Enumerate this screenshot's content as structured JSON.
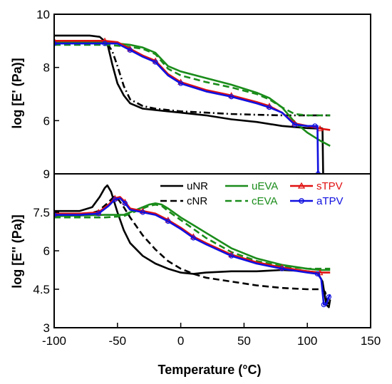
{
  "chart_data": [
    {
      "type": "line",
      "panel": "top",
      "ylabel": "log [E' (Pa)]",
      "xlim": [
        -100,
        150
      ],
      "ylim": [
        4,
        10
      ],
      "ytick_labels": [
        "10",
        "8",
        "6"
      ],
      "grid": false,
      "series": [
        {
          "name": "uNR",
          "color": "#000000",
          "dash": "solid",
          "marker": "none",
          "x": [
            -100,
            -80,
            -72,
            -64,
            -58,
            -54,
            -50,
            -45,
            -40,
            -30,
            -20,
            -10,
            0,
            20,
            40,
            60,
            80,
            100,
            108,
            111,
            112,
            112.5
          ],
          "y": [
            9.2,
            9.2,
            9.2,
            9.15,
            8.9,
            8.1,
            7.4,
            6.95,
            6.65,
            6.45,
            6.4,
            6.35,
            6.3,
            6.2,
            6.05,
            5.95,
            5.8,
            5.72,
            5.7,
            5.72,
            5.7,
            4.0
          ]
        },
        {
          "name": "cNR",
          "color": "#000000",
          "dash": "dashdot",
          "marker": "none",
          "x": [
            -100,
            -70,
            -63,
            -58,
            -54,
            -50,
            -45,
            -40,
            -30,
            -20,
            -10,
            0,
            20,
            40,
            60,
            80,
            100,
            118
          ],
          "y": [
            8.95,
            8.95,
            8.95,
            8.9,
            8.6,
            8.05,
            7.3,
            6.8,
            6.55,
            6.45,
            6.4,
            6.35,
            6.3,
            6.25,
            6.22,
            6.2,
            6.2,
            6.2
          ]
        },
        {
          "name": "uEVA",
          "color": "#1a8c1a",
          "dash": "solid",
          "marker": "none",
          "x": [
            -100,
            -60,
            -40,
            -30,
            -20,
            -10,
            0,
            20,
            40,
            60,
            70,
            80,
            90,
            100,
            110,
            118
          ],
          "y": [
            8.95,
            8.95,
            8.85,
            8.75,
            8.55,
            8.05,
            7.85,
            7.6,
            7.35,
            7.05,
            6.85,
            6.5,
            5.95,
            5.55,
            5.25,
            5.05
          ]
        },
        {
          "name": "cEVA",
          "color": "#1a8c1a",
          "dash": "dashed",
          "marker": "none",
          "x": [
            -100,
            -60,
            -45,
            -30,
            -20,
            -10,
            0,
            20,
            40,
            60,
            70,
            80,
            90,
            100,
            110,
            118
          ],
          "y": [
            8.85,
            8.85,
            8.8,
            8.7,
            8.5,
            7.95,
            7.7,
            7.45,
            7.25,
            7.0,
            6.8,
            6.5,
            6.25,
            6.2,
            6.2,
            6.2
          ]
        },
        {
          "name": "sTPV",
          "color": "#e01010",
          "dash": "solid",
          "marker": "triangle",
          "x": [
            -100,
            -80,
            -60,
            -50,
            -40,
            -30,
            -20,
            -10,
            0,
            20,
            40,
            60,
            70,
            80,
            90,
            100,
            110,
            118
          ],
          "y": [
            9.0,
            9.0,
            9.0,
            8.95,
            8.7,
            8.45,
            8.25,
            7.75,
            7.45,
            7.15,
            6.95,
            6.7,
            6.55,
            6.3,
            5.9,
            5.8,
            5.7,
            5.65
          ]
        },
        {
          "name": "aTPV",
          "color": "#1010e0",
          "dash": "solid",
          "marker": "circle",
          "x": [
            -100,
            -80,
            -60,
            -50,
            -40,
            -30,
            -20,
            -10,
            0,
            20,
            40,
            60,
            70,
            80,
            90,
            100,
            106,
            108,
            108.5
          ],
          "y": [
            8.9,
            8.9,
            8.9,
            8.9,
            8.65,
            8.4,
            8.2,
            7.7,
            7.4,
            7.1,
            6.9,
            6.65,
            6.5,
            6.3,
            5.85,
            5.8,
            5.8,
            5.8,
            4.0
          ]
        }
      ]
    },
    {
      "type": "line",
      "panel": "bottom",
      "ylabel": "log [E'' (Pa)]",
      "xlabel": "Temperature (°C)",
      "xlim": [
        -100,
        150
      ],
      "ylim": [
        3,
        9
      ],
      "ytick_labels": [
        "9",
        "7.5",
        "6",
        "4.5",
        "3"
      ],
      "xtick_labels": [
        "-100",
        "-50",
        "0",
        "50",
        "100",
        "150"
      ],
      "legend_position": "top-right",
      "grid": false,
      "series": [
        {
          "name": "uNR",
          "color": "#000000",
          "dash": "solid",
          "marker": "none",
          "x": [
            -100,
            -80,
            -70,
            -64,
            -60,
            -58,
            -55,
            -50,
            -45,
            -40,
            -30,
            -20,
            -10,
            0,
            10,
            20,
            40,
            60,
            80,
            100,
            108,
            112,
            115,
            117,
            118
          ],
          "y": [
            7.55,
            7.55,
            7.7,
            8.1,
            8.45,
            8.55,
            8.3,
            7.5,
            6.8,
            6.3,
            5.8,
            5.5,
            5.3,
            5.15,
            5.1,
            5.15,
            5.2,
            5.2,
            5.25,
            5.2,
            5.15,
            4.8,
            3.9,
            3.8,
            4.1
          ]
        },
        {
          "name": "cNR",
          "color": "#000000",
          "dash": "dashed",
          "marker": "none",
          "x": [
            -100,
            -80,
            -65,
            -58,
            -53,
            -50,
            -45,
            -40,
            -30,
            -20,
            -10,
            0,
            10,
            20,
            40,
            60,
            80,
            100,
            110,
            114,
            116,
            117
          ],
          "y": [
            7.3,
            7.35,
            7.55,
            7.85,
            8.1,
            8.05,
            7.7,
            7.3,
            6.6,
            6.05,
            5.6,
            5.3,
            5.1,
            4.95,
            4.8,
            4.65,
            4.55,
            4.5,
            4.5,
            4.4,
            4.0,
            3.9
          ]
        },
        {
          "name": "uEVA",
          "color": "#1a8c1a",
          "dash": "solid",
          "marker": "none",
          "x": [
            -100,
            -60,
            -45,
            -35,
            -25,
            -20,
            -15,
            -10,
            0,
            10,
            20,
            40,
            60,
            80,
            100,
            110,
            118
          ],
          "y": [
            7.35,
            7.4,
            7.4,
            7.6,
            7.8,
            7.85,
            7.8,
            7.65,
            7.3,
            7.0,
            6.7,
            6.1,
            5.7,
            5.45,
            5.3,
            5.25,
            5.25
          ]
        },
        {
          "name": "cEVA",
          "color": "#1a8c1a",
          "dash": "dashed",
          "marker": "none",
          "x": [
            -100,
            -60,
            -45,
            -35,
            -25,
            -20,
            -15,
            -10,
            0,
            10,
            20,
            40,
            60,
            80,
            100,
            110,
            118
          ],
          "y": [
            7.3,
            7.3,
            7.35,
            7.55,
            7.75,
            7.8,
            7.75,
            7.55,
            7.2,
            6.85,
            6.5,
            5.95,
            5.6,
            5.4,
            5.3,
            5.3,
            5.3
          ]
        },
        {
          "name": "sTPV",
          "color": "#e01010",
          "dash": "solid",
          "marker": "triangle",
          "x": [
            -100,
            -80,
            -65,
            -57,
            -52,
            -48,
            -44,
            -40,
            -30,
            -20,
            -10,
            0,
            10,
            20,
            40,
            60,
            80,
            100,
            110,
            118
          ],
          "y": [
            7.45,
            7.45,
            7.5,
            7.8,
            8.05,
            8.1,
            7.9,
            7.65,
            7.55,
            7.45,
            7.2,
            6.9,
            6.55,
            6.3,
            5.85,
            5.55,
            5.35,
            5.2,
            5.15,
            5.15
          ]
        },
        {
          "name": "aTPV",
          "color": "#1010e0",
          "dash": "solid",
          "marker": "circle",
          "x": [
            -100,
            -80,
            -65,
            -57,
            -52,
            -48,
            -44,
            -40,
            -30,
            -20,
            -10,
            0,
            10,
            20,
            40,
            60,
            80,
            100,
            108,
            111,
            113,
            115,
            117,
            118
          ],
          "y": [
            7.4,
            7.4,
            7.45,
            7.75,
            8.0,
            8.05,
            7.85,
            7.6,
            7.5,
            7.4,
            7.15,
            6.85,
            6.5,
            6.25,
            5.8,
            5.5,
            5.3,
            5.15,
            5.1,
            4.9,
            3.9,
            3.9,
            4.2,
            4.3
          ]
        }
      ]
    }
  ]
}
